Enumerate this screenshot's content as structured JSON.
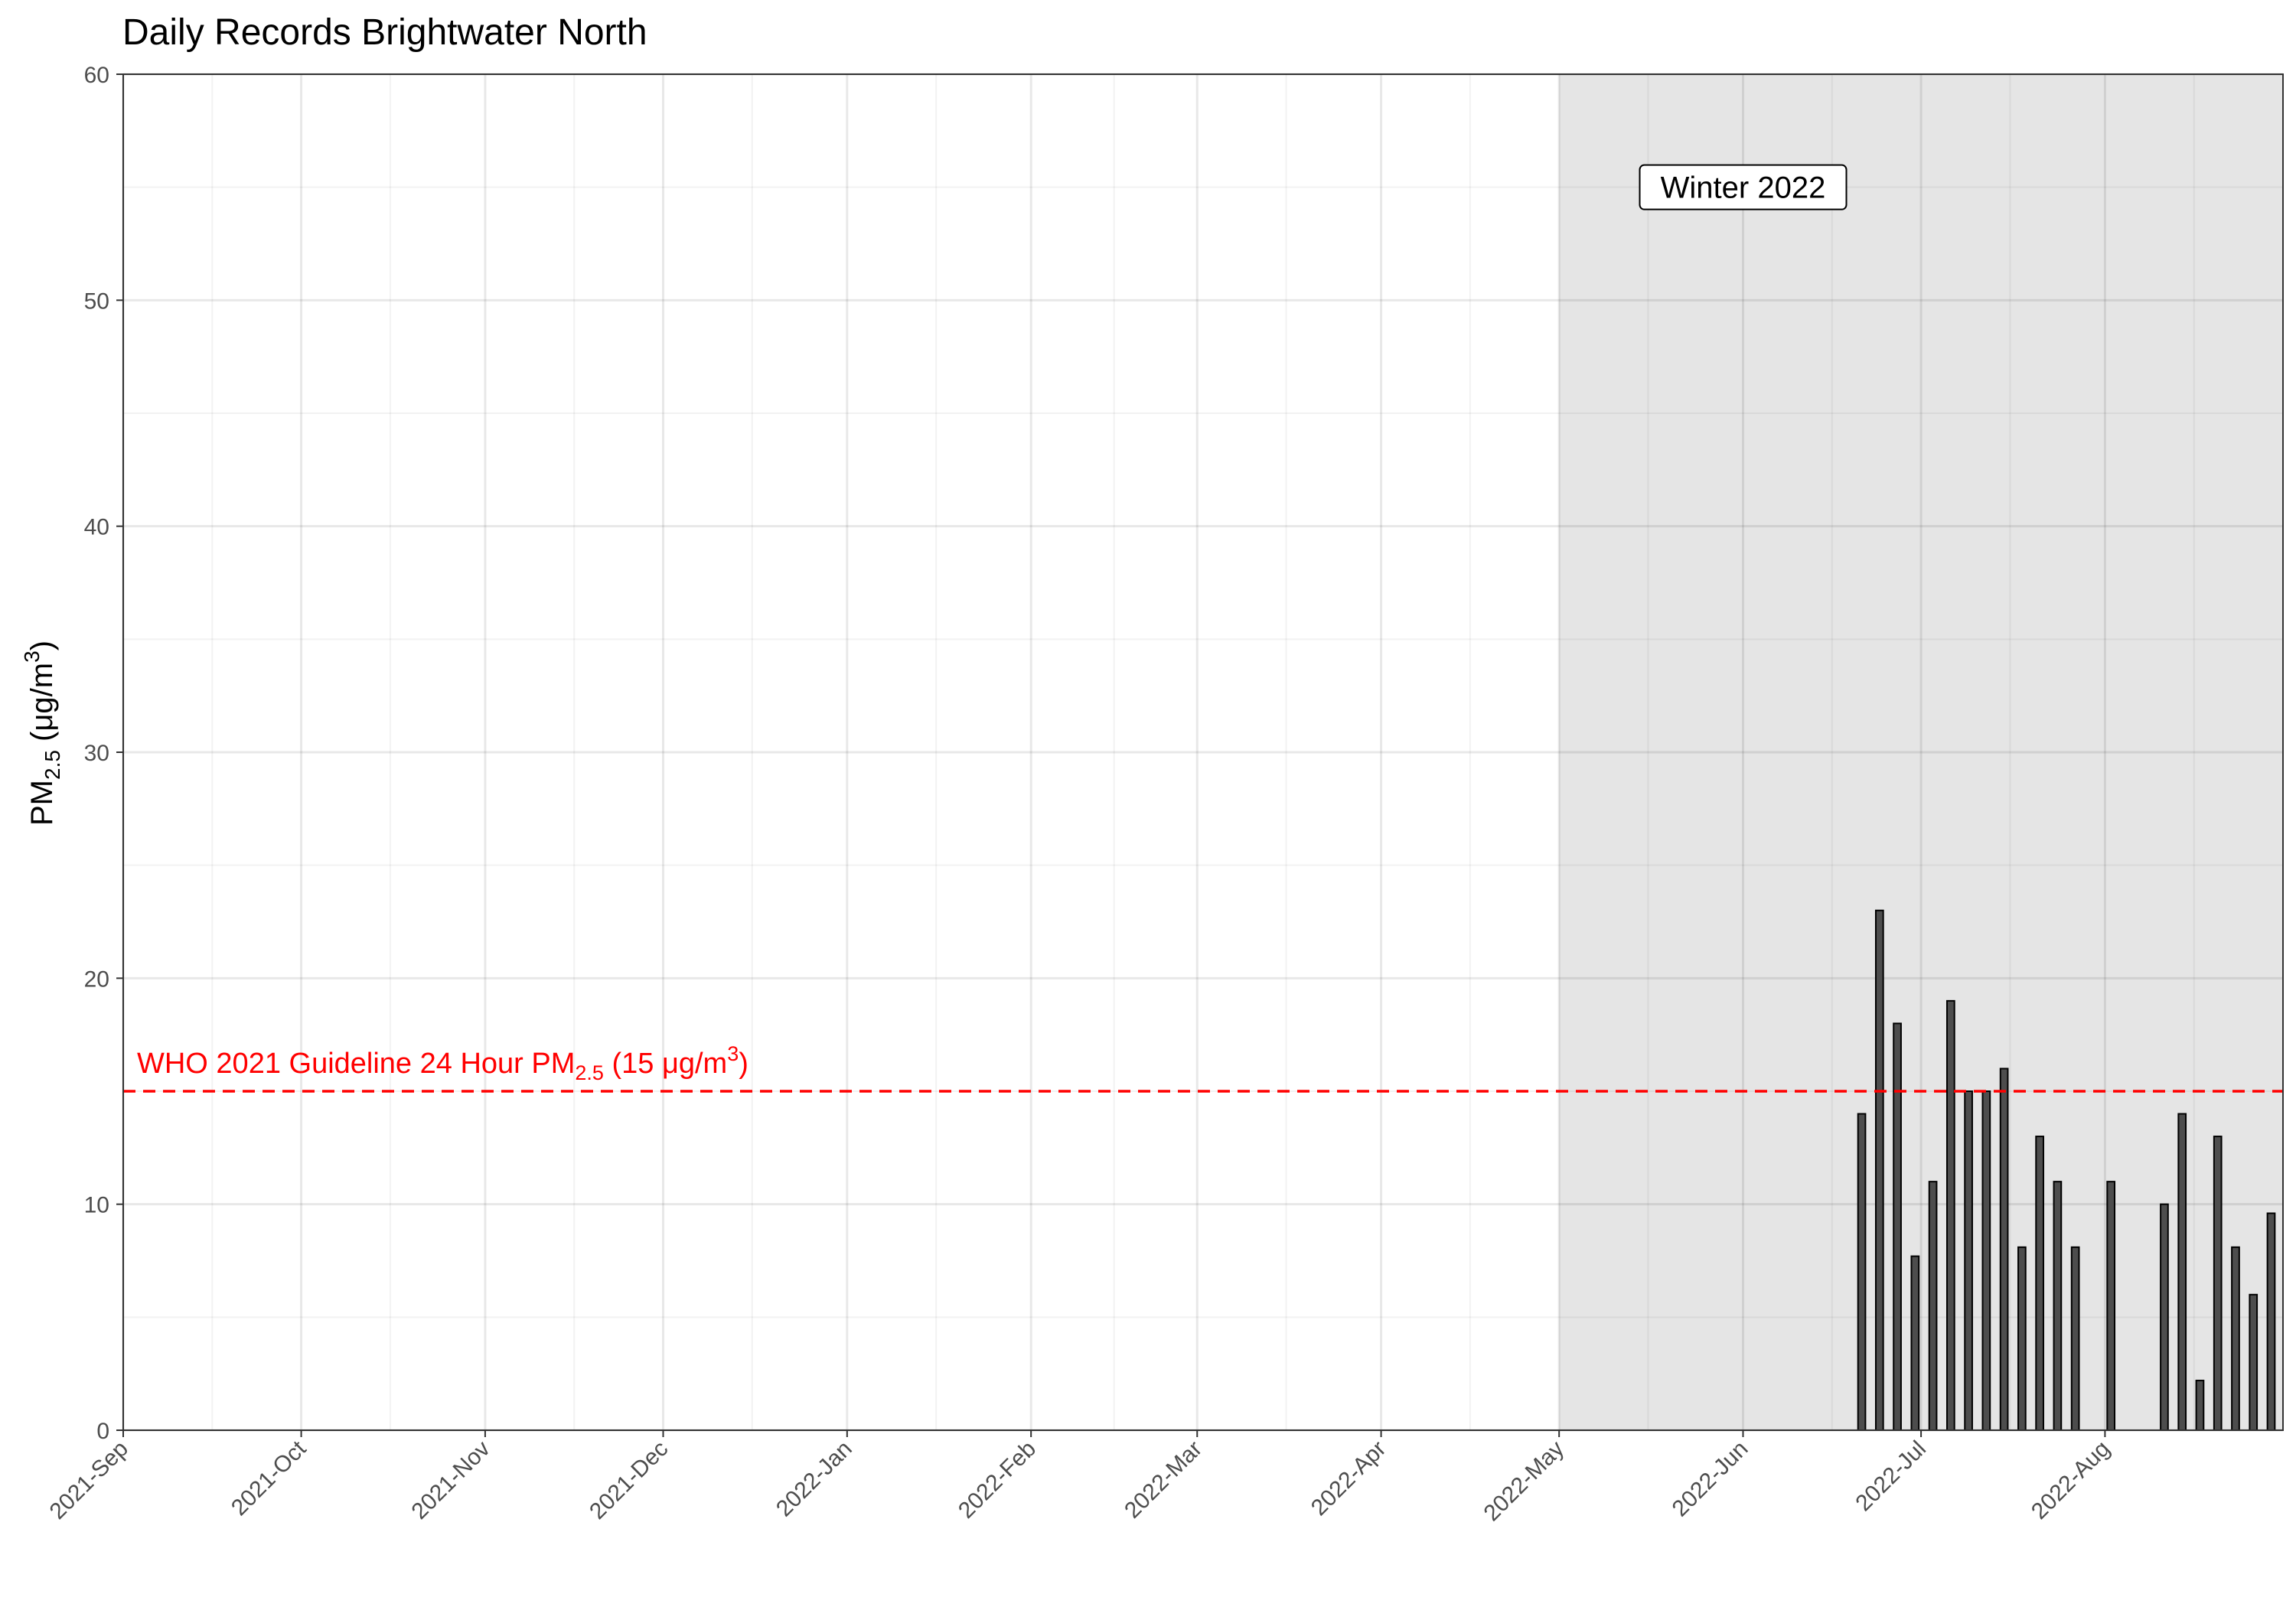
{
  "chart_data": {
    "type": "bar",
    "title": "Daily Records Brightwater North",
    "xlabel": "",
    "ylabel": {
      "prefix": "PM",
      "subscript": "2.5",
      "unit_open": " (μg/m",
      "superscript": "3",
      "unit_close": ")"
    },
    "ylim": [
      0,
      60
    ],
    "yticks": [
      "0",
      "10",
      "20",
      "30",
      "40",
      "50",
      "60"
    ],
    "xlim": [
      "2021-09-01",
      "2022-08-31"
    ],
    "xticks": [
      {
        "date": "2021-09-01",
        "label": "2021-Sep"
      },
      {
        "date": "2021-10-01",
        "label": "2021-Oct"
      },
      {
        "date": "2021-11-01",
        "label": "2021-Nov"
      },
      {
        "date": "2021-12-01",
        "label": "2021-Dec"
      },
      {
        "date": "2022-01-01",
        "label": "2022-Jan"
      },
      {
        "date": "2022-02-01",
        "label": "2022-Feb"
      },
      {
        "date": "2022-03-01",
        "label": "2022-Mar"
      },
      {
        "date": "2022-04-01",
        "label": "2022-Apr"
      },
      {
        "date": "2022-05-01",
        "label": "2022-May"
      },
      {
        "date": "2022-06-01",
        "label": "2022-Jun"
      },
      {
        "date": "2022-07-01",
        "label": "2022-Jul"
      },
      {
        "date": "2022-08-01",
        "label": "2022-Aug"
      }
    ],
    "grid": true,
    "bar_fill": "#4d4d4d",
    "bar_stroke": "#000000",
    "bars": [
      {
        "date": "2022-06-21",
        "value": 14
      },
      {
        "date": "2022-06-24",
        "value": 23
      },
      {
        "date": "2022-06-27",
        "value": 18
      },
      {
        "date": "2022-06-30",
        "value": 7.7
      },
      {
        "date": "2022-07-03",
        "value": 11
      },
      {
        "date": "2022-07-06",
        "value": 19
      },
      {
        "date": "2022-07-09",
        "value": 15
      },
      {
        "date": "2022-07-12",
        "value": 15
      },
      {
        "date": "2022-07-15",
        "value": 16
      },
      {
        "date": "2022-07-18",
        "value": 8.1
      },
      {
        "date": "2022-07-21",
        "value": 13
      },
      {
        "date": "2022-07-24",
        "value": 11
      },
      {
        "date": "2022-07-27",
        "value": 8.1
      },
      {
        "date": "2022-08-02",
        "value": 11
      },
      {
        "date": "2022-08-11",
        "value": 10
      },
      {
        "date": "2022-08-14",
        "value": 14
      },
      {
        "date": "2022-08-17",
        "value": 2.2
      },
      {
        "date": "2022-08-20",
        "value": 13
      },
      {
        "date": "2022-08-23",
        "value": 8.1
      },
      {
        "date": "2022-08-26",
        "value": 6
      },
      {
        "date": "2022-08-29",
        "value": 9.6
      }
    ],
    "season": {
      "label": "Winter 2022",
      "start": "2022-05-01",
      "end": "2022-08-31",
      "fill": "#e5e5e5"
    },
    "guideline": {
      "value": 15,
      "color": "#ff0000",
      "text_prefix": "WHO 2021 Guideline 24 Hour PM",
      "text_sub": "2.5",
      "text_unit_open": " (15 μg/m",
      "text_sup": "3",
      "text_unit_close": ")"
    }
  }
}
